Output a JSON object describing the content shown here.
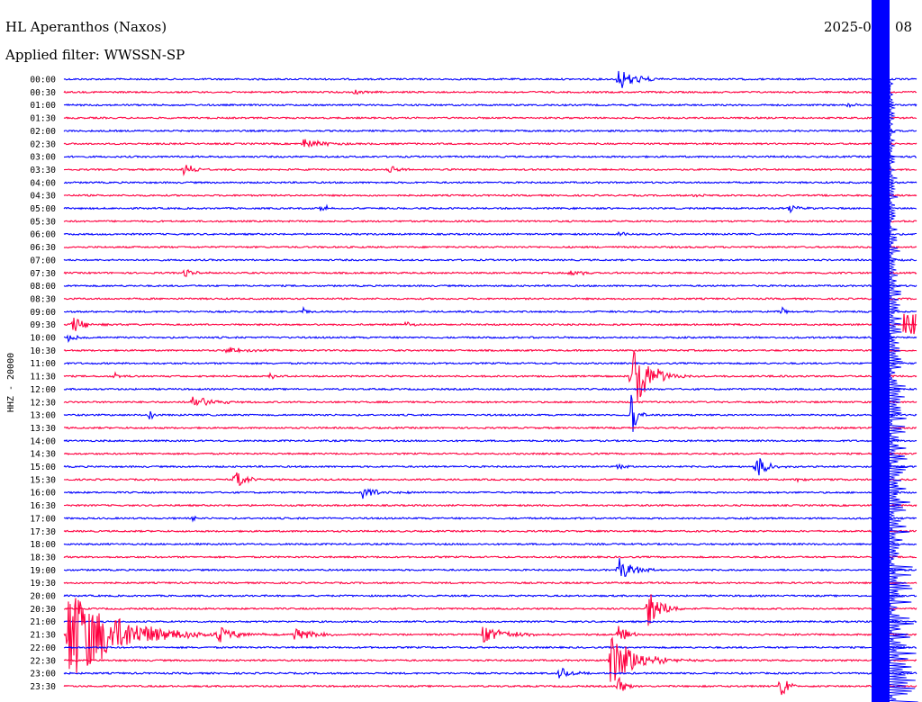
{
  "header": {
    "station": "HL Aperanthos (Naxos)",
    "filter": "Applied filter: WWSSN-SP",
    "date": "2025-0",
    "date_tail": "08"
  },
  "chart_data": {
    "type": "line",
    "ylabel": "HHZ - 20000",
    "colors": {
      "even_hour": "#0000ff",
      "half_hour": "#ff0040"
    },
    "lines": [
      "00:00",
      "00:30",
      "01:00",
      "01:30",
      "02:00",
      "02:30",
      "03:00",
      "03:30",
      "04:00",
      "04:30",
      "05:00",
      "05:30",
      "06:00",
      "06:30",
      "07:00",
      "07:30",
      "08:00",
      "08:30",
      "09:00",
      "09:30",
      "10:00",
      "10:30",
      "11:00",
      "11:30",
      "12:00",
      "12:30",
      "13:00",
      "13:30",
      "14:00",
      "14:30",
      "15:00",
      "15:30",
      "16:00",
      "16:30",
      "17:00",
      "17:30",
      "18:00",
      "18:30",
      "19:00",
      "19:30",
      "20:00",
      "20:30",
      "21:00",
      "21:30",
      "22:00",
      "22:30",
      "23:00",
      "23:30"
    ],
    "events": [
      {
        "line": "00:00",
        "t": 0.65,
        "amp": 14,
        "dur": 0.018
      },
      {
        "line": "00:30",
        "t": 0.34,
        "amp": 5,
        "dur": 0.008
      },
      {
        "line": "01:00",
        "t": 0.92,
        "amp": 3,
        "dur": 0.008
      },
      {
        "line": "02:30",
        "t": 0.28,
        "amp": 7,
        "dur": 0.02
      },
      {
        "line": "03:30",
        "t": 0.14,
        "amp": 8,
        "dur": 0.012
      },
      {
        "line": "03:30",
        "t": 0.38,
        "amp": 5,
        "dur": 0.014
      },
      {
        "line": "04:30",
        "t": 0.74,
        "amp": 4,
        "dur": 0.008
      },
      {
        "line": "05:00",
        "t": 0.3,
        "amp": 5,
        "dur": 0.01
      },
      {
        "line": "05:00",
        "t": 0.85,
        "amp": 7,
        "dur": 0.01
      },
      {
        "line": "06:00",
        "t": 0.65,
        "amp": 5,
        "dur": 0.008
      },
      {
        "line": "07:30",
        "t": 0.14,
        "amp": 5,
        "dur": 0.012
      },
      {
        "line": "07:30",
        "t": 0.59,
        "amp": 4,
        "dur": 0.02
      },
      {
        "line": "09:00",
        "t": 0.28,
        "amp": 6,
        "dur": 0.005
      },
      {
        "line": "09:00",
        "t": 0.84,
        "amp": 6,
        "dur": 0.006
      },
      {
        "line": "09:30",
        "t": 0.01,
        "amp": 10,
        "dur": 0.015
      },
      {
        "line": "09:30",
        "t": 0.4,
        "amp": 6,
        "dur": 0.005
      },
      {
        "line": "10:00",
        "t": 0.005,
        "amp": 5,
        "dur": 0.008
      },
      {
        "line": "10:30",
        "t": 0.19,
        "amp": 4,
        "dur": 0.02
      },
      {
        "line": "11:30",
        "t": 0.665,
        "amp": 45,
        "dur": 0.018
      },
      {
        "line": "11:30",
        "t": 0.06,
        "amp": 6,
        "dur": 0.004
      },
      {
        "line": "11:30",
        "t": 0.24,
        "amp": 5,
        "dur": 0.008
      },
      {
        "line": "12:30",
        "t": 0.15,
        "amp": 9,
        "dur": 0.02
      },
      {
        "line": "13:00",
        "t": 0.1,
        "amp": 8,
        "dur": 0.004
      },
      {
        "line": "13:00",
        "t": 0.665,
        "amp": 30,
        "dur": 0.006
      },
      {
        "line": "15:00",
        "t": 0.81,
        "amp": 20,
        "dur": 0.01
      },
      {
        "line": "15:00",
        "t": 0.65,
        "amp": 5,
        "dur": 0.006
      },
      {
        "line": "15:30",
        "t": 0.2,
        "amp": 12,
        "dur": 0.012
      },
      {
        "line": "15:30",
        "t": 0.86,
        "amp": 4,
        "dur": 0.006
      },
      {
        "line": "16:00",
        "t": 0.35,
        "amp": 7,
        "dur": 0.02
      },
      {
        "line": "17:00",
        "t": 0.15,
        "amp": 5,
        "dur": 0.004
      },
      {
        "line": "19:00",
        "t": 0.65,
        "amp": 14,
        "dur": 0.016
      },
      {
        "line": "20:30",
        "t": 0.685,
        "amp": 22,
        "dur": 0.015
      },
      {
        "line": "21:30",
        "t": 0.005,
        "amp": 60,
        "dur": 0.05
      },
      {
        "line": "21:30",
        "t": 0.18,
        "amp": 9,
        "dur": 0.016
      },
      {
        "line": "21:30",
        "t": 0.27,
        "amp": 8,
        "dur": 0.02
      },
      {
        "line": "21:30",
        "t": 0.49,
        "amp": 9,
        "dur": 0.03
      },
      {
        "line": "21:30",
        "t": 0.65,
        "amp": 12,
        "dur": 0.01
      },
      {
        "line": "22:30",
        "t": 0.64,
        "amp": 35,
        "dur": 0.025
      },
      {
        "line": "23:00",
        "t": 0.58,
        "amp": 8,
        "dur": 0.012
      },
      {
        "line": "23:30",
        "t": 0.84,
        "amp": 14,
        "dur": 0.008
      },
      {
        "line": "23:30",
        "t": 0.65,
        "amp": 12,
        "dur": 0.008
      }
    ]
  }
}
